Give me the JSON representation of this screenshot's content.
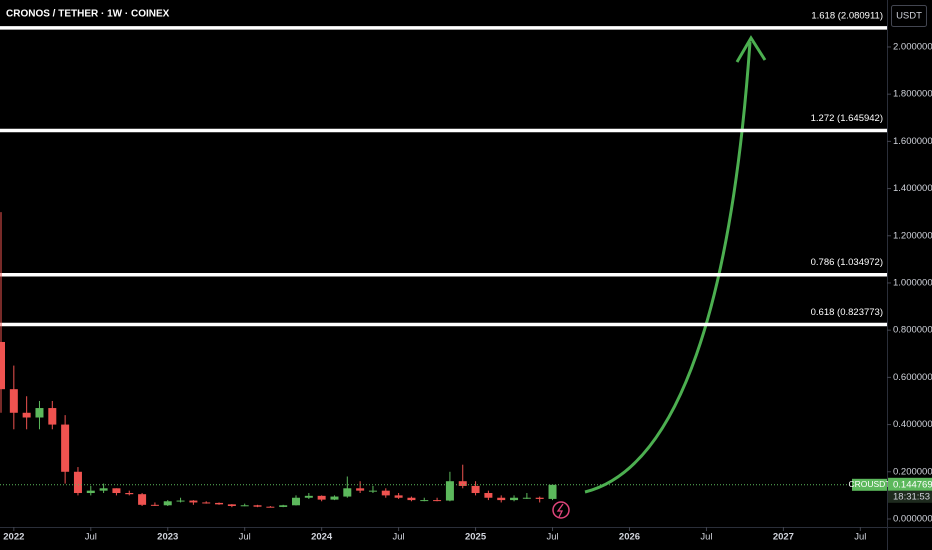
{
  "chart_data": {
    "type": "candlestick",
    "title": "CRONOS / TETHER · 1W · COINEX",
    "currency": "USDT",
    "symbol": "CROUSDT",
    "last_price": {
      "value": 0.144769,
      "label": "0.144769"
    },
    "countdown": "18:31:53",
    "up_color": "#5cb85c",
    "down_color": "#ef5350",
    "x": [
      "2021-12",
      "2022-01",
      "2022-02",
      "2022-03",
      "2022-04",
      "2022-05",
      "2022-06",
      "2022-07",
      "2022-08",
      "2022-09",
      "2022-10",
      "2022-11",
      "2022-12",
      "2023-01",
      "2023-02",
      "2023-03",
      "2023-04",
      "2023-05",
      "2023-06",
      "2023-07",
      "2023-08",
      "2023-09",
      "2023-10",
      "2023-11",
      "2023-12",
      "2024-01",
      "2024-02",
      "2024-03",
      "2024-04",
      "2024-05",
      "2024-06",
      "2024-07",
      "2024-08",
      "2024-09",
      "2024-10",
      "2024-11",
      "2024-12",
      "2025-01",
      "2025-02",
      "2025-03",
      "2025-04",
      "2025-05",
      "2025-06",
      "2025-07"
    ],
    "open": [
      0.75,
      0.55,
      0.45,
      0.43,
      0.47,
      0.4,
      0.2,
      0.11,
      0.12,
      0.13,
      0.11,
      0.105,
      0.06,
      0.058,
      0.075,
      0.078,
      0.07,
      0.068,
      0.062,
      0.055,
      0.058,
      0.052,
      0.051,
      0.058,
      0.09,
      0.098,
      0.082,
      0.095,
      0.13,
      0.12,
      0.12,
      0.1,
      0.09,
      0.08,
      0.08,
      0.078,
      0.16,
      0.14,
      0.11,
      0.09,
      0.08,
      0.09,
      0.09,
      0.085
    ],
    "high": [
      1.3,
      0.65,
      0.52,
      0.5,
      0.5,
      0.44,
      0.22,
      0.14,
      0.15,
      0.13,
      0.12,
      0.11,
      0.07,
      0.08,
      0.09,
      0.08,
      0.075,
      0.07,
      0.063,
      0.065,
      0.06,
      0.055,
      0.06,
      0.1,
      0.11,
      0.1,
      0.1,
      0.18,
      0.16,
      0.14,
      0.13,
      0.11,
      0.095,
      0.09,
      0.09,
      0.2,
      0.23,
      0.16,
      0.12,
      0.1,
      0.1,
      0.11,
      0.095,
      0.145
    ],
    "low": [
      0.45,
      0.38,
      0.38,
      0.38,
      0.38,
      0.15,
      0.1,
      0.1,
      0.11,
      0.1,
      0.1,
      0.055,
      0.055,
      0.055,
      0.07,
      0.06,
      0.065,
      0.06,
      0.05,
      0.054,
      0.05,
      0.05,
      0.05,
      0.057,
      0.085,
      0.075,
      0.08,
      0.09,
      0.11,
      0.11,
      0.09,
      0.085,
      0.075,
      0.075,
      0.075,
      0.075,
      0.13,
      0.1,
      0.08,
      0.07,
      0.075,
      0.085,
      0.07,
      0.08
    ],
    "close": [
      0.55,
      0.45,
      0.43,
      0.47,
      0.4,
      0.2,
      0.11,
      0.12,
      0.13,
      0.11,
      0.105,
      0.06,
      0.058,
      0.075,
      0.078,
      0.07,
      0.068,
      0.062,
      0.055,
      0.058,
      0.052,
      0.051,
      0.058,
      0.09,
      0.098,
      0.082,
      0.095,
      0.13,
      0.12,
      0.12,
      0.1,
      0.09,
      0.08,
      0.08,
      0.078,
      0.16,
      0.14,
      0.11,
      0.09,
      0.08,
      0.09,
      0.09,
      0.085,
      0.144769
    ],
    "fib_levels": [
      {
        "label": "1.618 (2.080911)",
        "value": 2.080911
      },
      {
        "label": "1.272 (1.645942)",
        "value": 1.645942
      },
      {
        "label": "0.786 (1.034972)",
        "value": 1.034972
      },
      {
        "label": "0.618 (0.823773)",
        "value": 0.823773
      }
    ],
    "xlim": [
      "2021-12",
      "2027-09"
    ],
    "xticks": [
      {
        "value": "2022-01",
        "label": "2022"
      },
      {
        "value": "2022-07",
        "label": "Jul"
      },
      {
        "value": "2023-01",
        "label": "2023"
      },
      {
        "value": "2023-07",
        "label": "Jul"
      },
      {
        "value": "2024-01",
        "label": "2024"
      },
      {
        "value": "2024-07",
        "label": "Jul"
      },
      {
        "value": "2025-01",
        "label": "2025"
      },
      {
        "value": "2025-07",
        "label": "Jul"
      },
      {
        "value": "2026-01",
        "label": "2026"
      },
      {
        "value": "2026-07",
        "label": "Jul"
      },
      {
        "value": "2027-01",
        "label": "2027"
      },
      {
        "value": "2027-07",
        "label": "Jul"
      }
    ],
    "ylim": [
      -0.034,
      2.199
    ],
    "yticks": [
      {
        "value": 0,
        "label": "0.000000"
      },
      {
        "value": 0.2,
        "label": "0.200000"
      },
      {
        "value": 0.4,
        "label": "0.400000"
      },
      {
        "value": 0.6,
        "label": "0.600000"
      },
      {
        "value": 0.8,
        "label": "0.800000"
      },
      {
        "value": 1.0,
        "label": "1.000000"
      },
      {
        "value": 1.2,
        "label": "1.200000"
      },
      {
        "value": 1.4,
        "label": "1.400000"
      },
      {
        "value": 1.6,
        "label": "1.600000"
      },
      {
        "value": 1.8,
        "label": "1.800000"
      },
      {
        "value": 2.0,
        "label": "2.000000"
      }
    ]
  }
}
